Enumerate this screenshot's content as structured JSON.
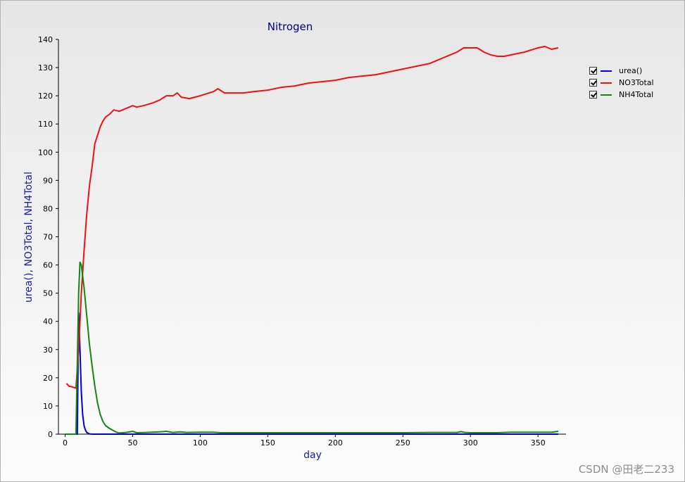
{
  "watermark": "CSDN @田老二233",
  "chart_data": {
    "type": "line",
    "title": "Nitrogen",
    "xlabel": "day",
    "ylabel": "urea(), NO3Total, NH4Total",
    "xlim": [
      -5,
      370
    ],
    "ylim": [
      0,
      140
    ],
    "xticks": [
      0,
      50,
      100,
      150,
      200,
      250,
      300,
      350
    ],
    "yticks": [
      0,
      10,
      20,
      30,
      40,
      50,
      60,
      70,
      80,
      90,
      100,
      110,
      120,
      130,
      140
    ],
    "grid": false,
    "legend_position": "top-right",
    "series": [
      {
        "name": "urea()",
        "color": "#0000dd",
        "points": [
          [
            0,
            0
          ],
          [
            8,
            0
          ],
          [
            9,
            0
          ],
          [
            10,
            43
          ],
          [
            11,
            30
          ],
          [
            12,
            15
          ],
          [
            13,
            7
          ],
          [
            14,
            3
          ],
          [
            15,
            1.5
          ],
          [
            16,
            0.6
          ],
          [
            18,
            0.1
          ],
          [
            20,
            0
          ],
          [
            365,
            0
          ]
        ]
      },
      {
        "name": "NO3Total",
        "color": "#ee1111",
        "points": [
          [
            1,
            18
          ],
          [
            3,
            17
          ],
          [
            5,
            16.8
          ],
          [
            8,
            16.3
          ],
          [
            10,
            30
          ],
          [
            12,
            50
          ],
          [
            14,
            65
          ],
          [
            16,
            78
          ],
          [
            18,
            88
          ],
          [
            20,
            95
          ],
          [
            22,
            103
          ],
          [
            24,
            106
          ],
          [
            26,
            109
          ],
          [
            28,
            111
          ],
          [
            30,
            112.5
          ],
          [
            33,
            113.5
          ],
          [
            36,
            115
          ],
          [
            40,
            114.5
          ],
          [
            45,
            115.5
          ],
          [
            50,
            116.5
          ],
          [
            53,
            116
          ],
          [
            58,
            116.5
          ],
          [
            65,
            117.5
          ],
          [
            70,
            118.5
          ],
          [
            75,
            120
          ],
          [
            80,
            120
          ],
          [
            83,
            121
          ],
          [
            86,
            119.5
          ],
          [
            92,
            119
          ],
          [
            100,
            120
          ],
          [
            110,
            121.5
          ],
          [
            113,
            122.5
          ],
          [
            118,
            121
          ],
          [
            125,
            121
          ],
          [
            132,
            121
          ],
          [
            140,
            121.5
          ],
          [
            150,
            122
          ],
          [
            160,
            123
          ],
          [
            170,
            123.5
          ],
          [
            180,
            124.5
          ],
          [
            190,
            125
          ],
          [
            200,
            125.5
          ],
          [
            210,
            126.5
          ],
          [
            220,
            127
          ],
          [
            230,
            127.5
          ],
          [
            240,
            128.5
          ],
          [
            250,
            129.5
          ],
          [
            260,
            130.5
          ],
          [
            270,
            131.5
          ],
          [
            280,
            133.5
          ],
          [
            290,
            135.5
          ],
          [
            295,
            137
          ],
          [
            300,
            137
          ],
          [
            305,
            137
          ],
          [
            310,
            135.5
          ],
          [
            315,
            134.5
          ],
          [
            320,
            134
          ],
          [
            325,
            134
          ],
          [
            330,
            134.5
          ],
          [
            340,
            135.5
          ],
          [
            350,
            137
          ],
          [
            355,
            137.5
          ],
          [
            360,
            136.5
          ],
          [
            365,
            137
          ]
        ]
      },
      {
        "name": "NH4Total",
        "color": "#118811",
        "points": [
          [
            0,
            0
          ],
          [
            8,
            0
          ],
          [
            9,
            25
          ],
          [
            10,
            50
          ],
          [
            11,
            61
          ],
          [
            12,
            60
          ],
          [
            14,
            52
          ],
          [
            16,
            42
          ],
          [
            18,
            32
          ],
          [
            20,
            24
          ],
          [
            22,
            17
          ],
          [
            24,
            11
          ],
          [
            26,
            7
          ],
          [
            28,
            4.5
          ],
          [
            30,
            3
          ],
          [
            33,
            2
          ],
          [
            36,
            1.2
          ],
          [
            38,
            0.7
          ],
          [
            40,
            0.4
          ],
          [
            45,
            0.6
          ],
          [
            50,
            1
          ],
          [
            53,
            0.5
          ],
          [
            60,
            0.6
          ],
          [
            70,
            0.8
          ],
          [
            75,
            1
          ],
          [
            80,
            0.6
          ],
          [
            85,
            0.8
          ],
          [
            90,
            0.6
          ],
          [
            100,
            0.7
          ],
          [
            110,
            0.7
          ],
          [
            115,
            0.5
          ],
          [
            150,
            0.5
          ],
          [
            200,
            0.5
          ],
          [
            250,
            0.5
          ],
          [
            270,
            0.6
          ],
          [
            290,
            0.6
          ],
          [
            293,
            0.9
          ],
          [
            296,
            0.6
          ],
          [
            300,
            0.5
          ],
          [
            320,
            0.5
          ],
          [
            330,
            0.7
          ],
          [
            350,
            0.7
          ],
          [
            360,
            0.7
          ],
          [
            365,
            1
          ]
        ]
      }
    ]
  }
}
